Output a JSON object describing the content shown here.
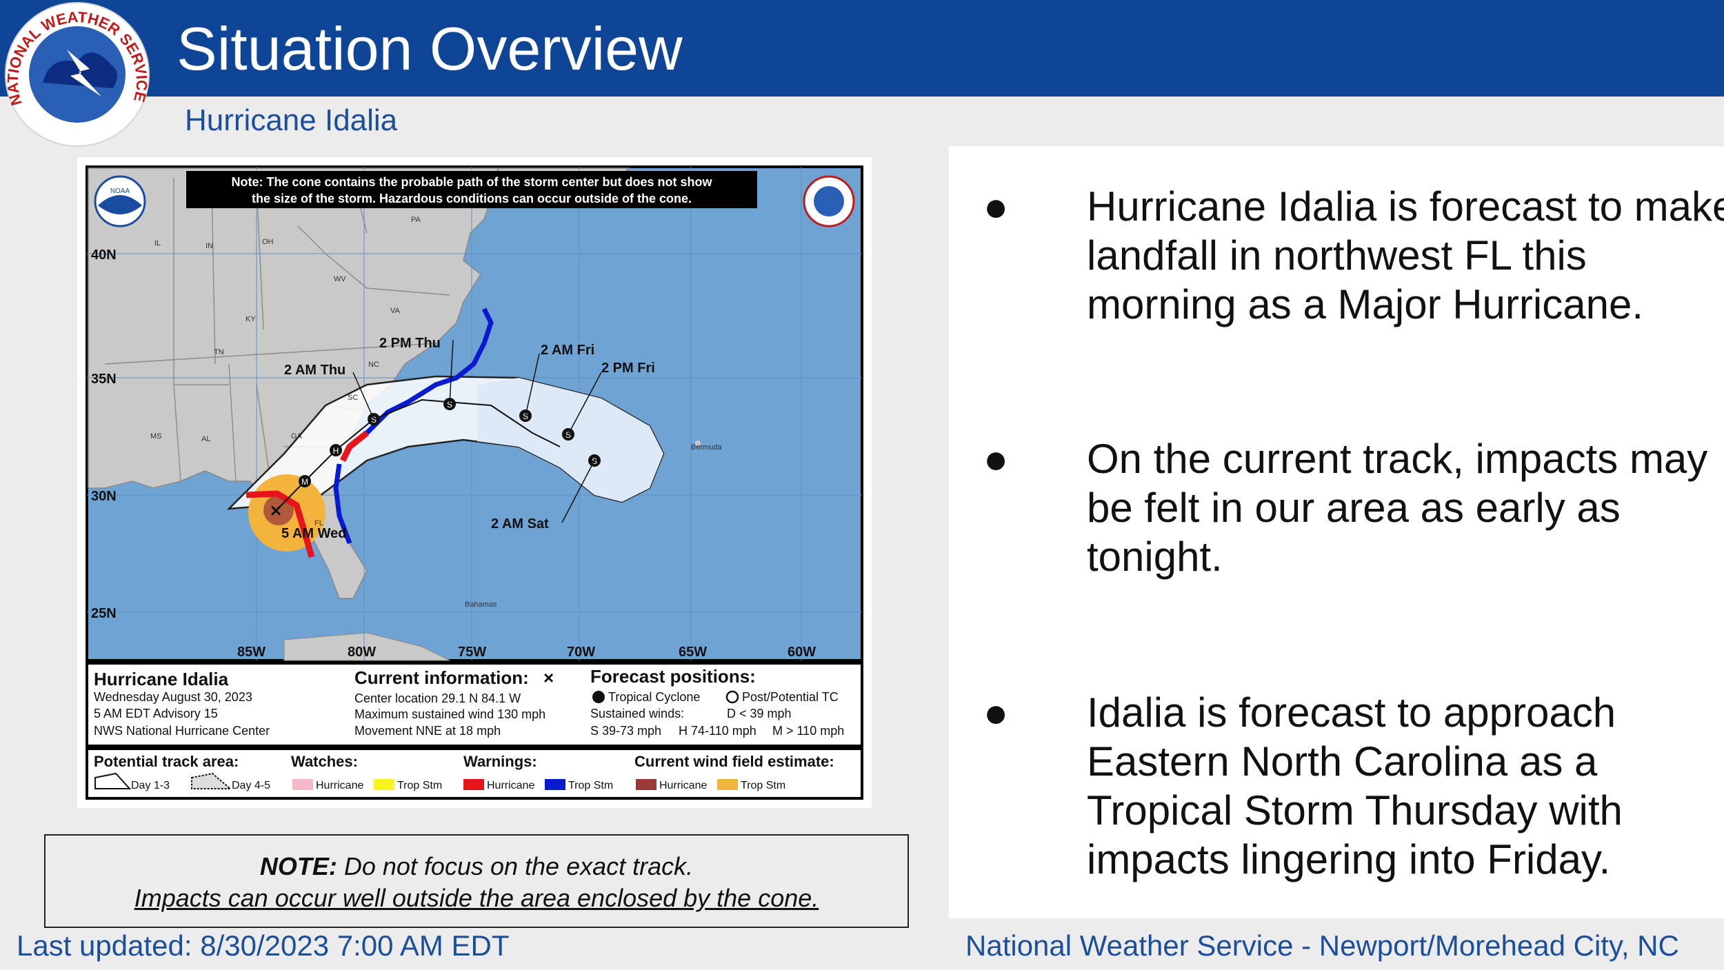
{
  "header": {
    "title": "Situation Overview",
    "subtitle": "Hurricane Idalia",
    "logo_text": "NATIONAL WEATHER SERVICE",
    "bar_color": "#0e4597"
  },
  "map": {
    "note_banner_line1": "Note: The cone contains the probable path of the storm center but does not show",
    "note_banner_line2": "the size of the storm. Hazardous conditions can occur outside of the cone.",
    "lat_labels": [
      "40N",
      "35N",
      "30N",
      "25N"
    ],
    "lon_labels": [
      "85W",
      "80W",
      "75W",
      "70W",
      "65W",
      "60W"
    ],
    "state_labels": [
      "PA",
      "IL",
      "IN",
      "OH",
      "WV",
      "KY",
      "VA",
      "TN",
      "NC",
      "SC",
      "MS",
      "AL",
      "GA",
      "FL"
    ],
    "place_labels": [
      "Bermuda",
      "Bahamas"
    ],
    "forecast_times": [
      "2 PM Thu",
      "2 AM Thu",
      "2 AM Fri",
      "2 PM Fri",
      "2 AM Sat",
      "5 AM Wed"
    ],
    "storm_name": "Hurricane Idalia",
    "advisory_date": "Wednesday August 30, 2023",
    "advisory_number": "5 AM EDT Advisory 15",
    "advisory_source": "NWS National Hurricane Center",
    "current_info_title": "Current information:",
    "current_location": "Center location 29.1 N 84.1 W",
    "current_wind": "Maximum sustained wind 130 mph",
    "current_movement": "Movement NNE at 18 mph",
    "forecast_positions_title": "Forecast positions:",
    "fp_tropical": "Tropical Cyclone",
    "fp_post": "Post/Potential TC",
    "fp_sustained": "Sustained winds:",
    "fp_d": "D < 39 mph",
    "fp_s": "S 39-73 mph",
    "fp_h": "H 74-110 mph",
    "fp_m": "M > 110 mph",
    "legend_track_title": "Potential track area:",
    "legend_day13": "Day 1-3",
    "legend_day45": "Day 4-5",
    "legend_watches_title": "Watches:",
    "legend_warnings_title": "Warnings:",
    "legend_wind_title": "Current wind field estimate:",
    "legend_hurricane": "Hurricane",
    "legend_tropstm": "Trop Stm",
    "noaa_text": "NOAA",
    "colors": {
      "ocean": "#6fa3d4",
      "land": "#c8c8c8",
      "hurricane_warning": "#e8141c",
      "ts_warning": "#0a1ad0",
      "hurricane_watch": "#f6b8c6",
      "ts_watch": "#f8f41e",
      "hurricane_wind": "#9a3b3b",
      "ts_wind": "#f2b43c"
    }
  },
  "note": {
    "bold": "NOTE:",
    "line1_rest": " Do not focus on the exact track.",
    "line2": "Impacts can occur well outside the area enclosed by the cone."
  },
  "bullets": [
    "Hurricane Idalia is forecast to make landfall in northwest FL this morning as a Major Hurricane.",
    "On the current track, impacts may be felt in our area as early as tonight.",
    "Idalia is forecast to approach Eastern North Carolina as a Tropical Storm Thursday with impacts lingering into Friday."
  ],
  "bullet_symbol": "●",
  "footer": {
    "left": "Last updated: 8/30/2023 7:00 AM EDT",
    "right": "National Weather Service - Newport/Morehead City, NC"
  }
}
